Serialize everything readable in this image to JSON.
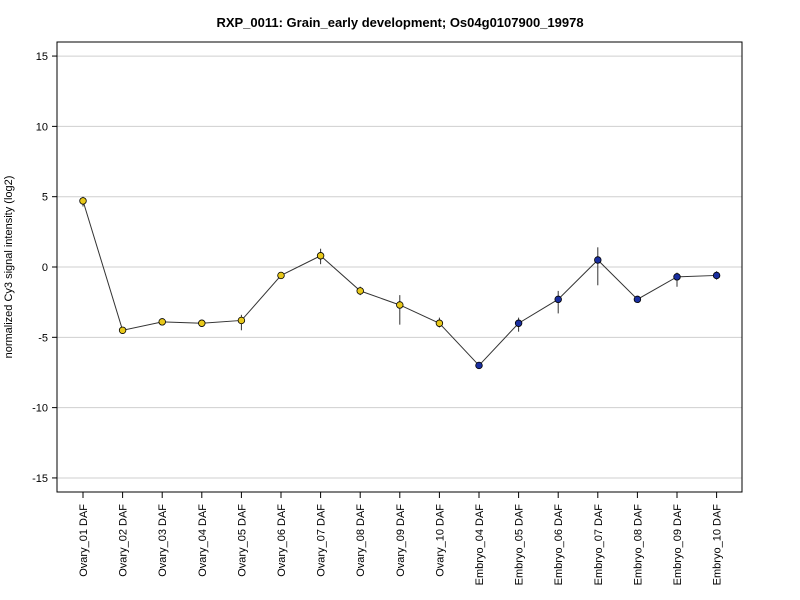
{
  "chart_data": {
    "type": "line",
    "title": "RXP_0011: Grain_early development; Os04g0107900_19978",
    "xlabel": "",
    "ylabel": "normalized Cy3 signal intensity (log2)",
    "ylim": [
      -16,
      16
    ],
    "yticks": [
      -15,
      -10,
      -5,
      0,
      5,
      10,
      15
    ],
    "grid": true,
    "categories": [
      "Ovary_01 DAF",
      "Ovary_02 DAF",
      "Ovary_03 DAF",
      "Ovary_04 DAF",
      "Ovary_05 DAF",
      "Ovary_06 DAF",
      "Ovary_07 DAF",
      "Ovary_08 DAF",
      "Ovary_09 DAF",
      "Ovary_10 DAF",
      "Embryo_04 DAF",
      "Embryo_05 DAF",
      "Embryo_06 DAF",
      "Embryo_07 DAF",
      "Embryo_08 DAF",
      "Embryo_09 DAF",
      "Embryo_10 DAF"
    ],
    "values": [
      4.7,
      -4.5,
      -3.9,
      -4.0,
      -3.8,
      -0.6,
      0.8,
      -1.7,
      -2.7,
      -4.0,
      -7.0,
      -4.0,
      -2.3,
      0.5,
      -2.3,
      -0.7,
      -0.6
    ],
    "error_low": [
      4.3,
      -4.6,
      -4.0,
      -4.2,
      -4.5,
      -0.8,
      0.2,
      -2.0,
      -4.1,
      -4.3,
      -7.1,
      -4.6,
      -3.3,
      -1.3,
      -2.4,
      -1.4,
      -0.9
    ],
    "error_high": [
      5.0,
      -4.4,
      -3.8,
      -3.8,
      -3.4,
      -0.4,
      1.3,
      -1.4,
      -2.0,
      -3.6,
      -6.9,
      -3.6,
      -1.7,
      1.4,
      -2.2,
      -0.4,
      -0.3
    ],
    "point_colors": [
      "#e8c81a",
      "#e8c81a",
      "#e8c81a",
      "#e8c81a",
      "#e8c81a",
      "#e8c81a",
      "#e8c81a",
      "#e8c81a",
      "#e8c81a",
      "#e8c81a",
      "#1a2fa0",
      "#1a2fa0",
      "#1a2fa0",
      "#1a2fa0",
      "#1a2fa0",
      "#1a2fa0",
      "#1a2fa0"
    ],
    "line_color": "#333333",
    "grid_color": "#cfcfcf"
  }
}
